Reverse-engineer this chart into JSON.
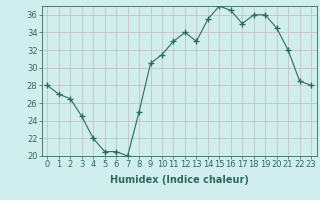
{
  "x": [
    0,
    1,
    2,
    3,
    4,
    5,
    6,
    7,
    8,
    9,
    10,
    11,
    12,
    13,
    14,
    15,
    16,
    17,
    18,
    19,
    20,
    21,
    22,
    23
  ],
  "y": [
    28,
    27,
    26.5,
    24.5,
    22,
    20.5,
    20.5,
    20,
    25,
    30.5,
    31.5,
    33,
    34,
    33,
    35.5,
    37,
    36.5,
    35,
    36,
    36,
    34.5,
    32,
    28.5,
    28
  ],
  "line_color": "#2e6b5e",
  "marker": "+",
  "marker_size": 4,
  "marker_lw": 1.0,
  "bg_color": "#d0eeee",
  "grid_color": "#c8b8b8",
  "xlabel": "Humidex (Indice chaleur)",
  "ylim": [
    20,
    37
  ],
  "xlim": [
    -0.5,
    23.5
  ],
  "yticks": [
    20,
    22,
    24,
    26,
    28,
    30,
    32,
    34,
    36
  ],
  "xticks": [
    0,
    1,
    2,
    3,
    4,
    5,
    6,
    7,
    8,
    9,
    10,
    11,
    12,
    13,
    14,
    15,
    16,
    17,
    18,
    19,
    20,
    21,
    22,
    23
  ],
  "tick_color": "#2e6b5e",
  "font_size_axis": 7,
  "font_size_ticks": 6,
  "line_width": 0.8
}
